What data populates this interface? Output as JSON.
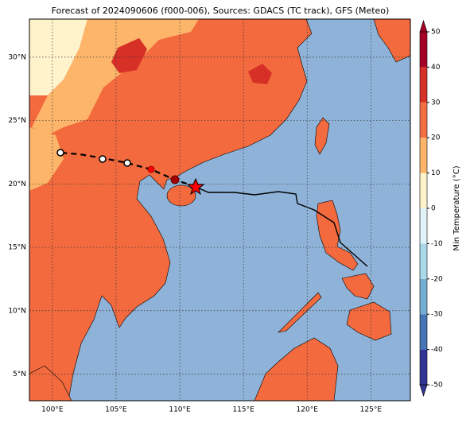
{
  "map": {
    "title": "Forecast of 2024090606 (f000-006), Sources: GDACS (TC track), GFS (Meteo)",
    "xlim": [
      98.2,
      128.1
    ],
    "ylim": [
      2.9,
      33
    ],
    "xticks": [
      {
        "value": 100,
        "label": "100°E"
      },
      {
        "value": 105,
        "label": "105°E"
      },
      {
        "value": 110,
        "label": "110°E"
      },
      {
        "value": 115,
        "label": "115°E"
      },
      {
        "value": 120,
        "label": "120°E"
      },
      {
        "value": 125,
        "label": "125°E"
      }
    ],
    "yticks": [
      {
        "value": 5,
        "label": "5°N"
      },
      {
        "value": 10,
        "label": "10°N"
      },
      {
        "value": 15,
        "label": "15°N"
      },
      {
        "value": 20,
        "label": "20°N"
      },
      {
        "value": 25,
        "label": "25°N"
      },
      {
        "value": 30,
        "label": "30°N"
      }
    ],
    "colorbar": {
      "label": "Min Temperature (°C)",
      "ticks": [
        -50,
        -40,
        -30,
        -20,
        -10,
        0,
        10,
        20,
        30,
        40,
        50
      ],
      "colors": [
        "#313695",
        "#4575b4",
        "#74add1",
        "#abd9e9",
        "#e0f3f8",
        "#fff3cc",
        "#fdb56a",
        "#f46d43",
        "#d73027",
        "#a50026"
      ]
    }
  }
}
